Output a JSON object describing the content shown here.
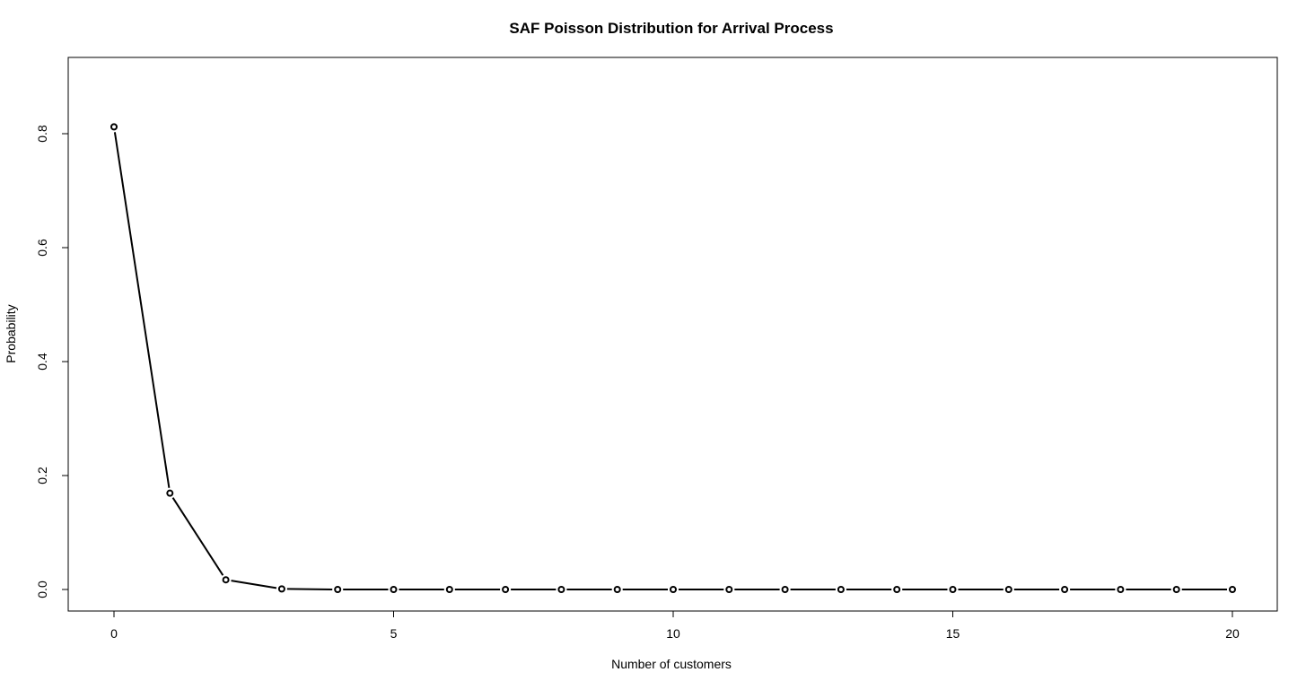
{
  "chart_data": {
    "type": "line",
    "title": "SAF Poisson Distribution for Arrival Process",
    "xlabel": "Number of customers",
    "ylabel": "Probability",
    "xlim": [
      0,
      20
    ],
    "ylim": [
      0,
      0.9
    ],
    "x_ticks": [
      "0",
      "5",
      "10",
      "15",
      "20"
    ],
    "y_ticks": [
      "0.0",
      "0.2",
      "0.4",
      "0.6",
      "0.8"
    ],
    "grid": false,
    "markers": "open-circle",
    "line_color": "#000000",
    "series": [
      {
        "x": [
          0,
          1,
          2,
          3,
          4,
          5,
          6,
          7,
          8,
          9,
          10,
          11,
          12,
          13,
          14,
          15,
          16,
          17,
          18,
          19,
          20
        ],
        "values": [
          0.812,
          0.169,
          0.017,
          0.001,
          0.0,
          0.0,
          0.0,
          0.0,
          0.0,
          0.0,
          0.0,
          0.0,
          0.0,
          0.0,
          0.0,
          0.0,
          0.0,
          0.0,
          0.0,
          0.0,
          0.0
        ]
      }
    ]
  }
}
